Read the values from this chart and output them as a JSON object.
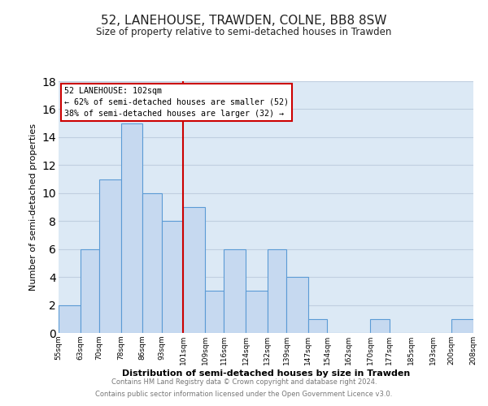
{
  "title": "52, LANEHOUSE, TRAWDEN, COLNE, BB8 8SW",
  "subtitle": "Size of property relative to semi-detached houses in Trawden",
  "xlabel": "Distribution of semi-detached houses by size in Trawden",
  "ylabel": "Number of semi-detached properties",
  "bar_edges": [
    55,
    63,
    70,
    78,
    86,
    93,
    101,
    109,
    116,
    124,
    132,
    139,
    147,
    154,
    162,
    170,
    177,
    185,
    193,
    200,
    208
  ],
  "bar_heights": [
    2,
    6,
    11,
    15,
    10,
    8,
    9,
    3,
    6,
    3,
    6,
    4,
    1,
    0,
    0,
    1,
    0,
    0,
    0,
    1
  ],
  "bar_color": "#c6d9f0",
  "bar_edgecolor": "#5b9bd5",
  "reference_line_x": 101,
  "reference_line_color": "#cc0000",
  "annotation_title": "52 LANEHOUSE: 102sqm",
  "annotation_line1": "← 62% of semi-detached houses are smaller (52)",
  "annotation_line2": "38% of semi-detached houses are larger (32) →",
  "annotation_box_edgecolor": "#cc0000",
  "annotation_box_facecolor": "#ffffff",
  "ylim": [
    0,
    18
  ],
  "yticks": [
    0,
    2,
    4,
    6,
    8,
    10,
    12,
    14,
    16,
    18
  ],
  "tick_labels": [
    "55sqm",
    "63sqm",
    "70sqm",
    "78sqm",
    "86sqm",
    "93sqm",
    "101sqm",
    "109sqm",
    "116sqm",
    "124sqm",
    "132sqm",
    "139sqm",
    "147sqm",
    "154sqm",
    "162sqm",
    "170sqm",
    "177sqm",
    "185sqm",
    "193sqm",
    "200sqm",
    "208sqm"
  ],
  "footer1": "Contains HM Land Registry data © Crown copyright and database right 2024.",
  "footer2": "Contains public sector information licensed under the Open Government Licence v3.0.",
  "background_color": "#ffffff",
  "plot_bg_color": "#dce9f5",
  "grid_color": "#c0cfe0"
}
